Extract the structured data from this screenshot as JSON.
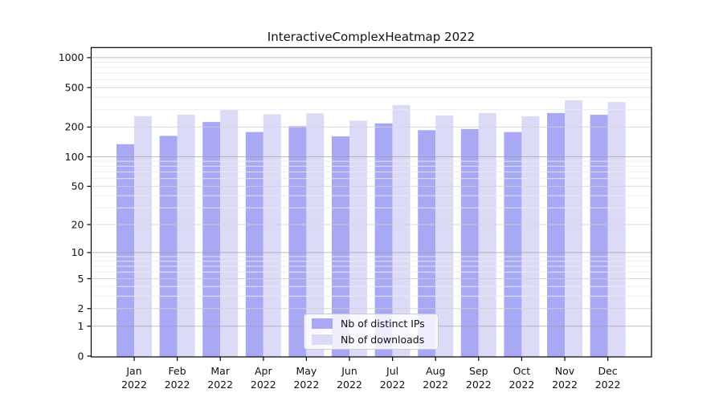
{
  "title": "InteractiveComplexHeatmap 2022",
  "chart_data": {
    "type": "bar",
    "title": "InteractiveComplexHeatmap 2022",
    "months": [
      "Jan",
      "Feb",
      "Mar",
      "Apr",
      "May",
      "Jun",
      "Jul",
      "Aug",
      "Sep",
      "Oct",
      "Nov",
      "Dec"
    ],
    "year": "2022",
    "categories": [
      "Jan 2022",
      "Feb 2022",
      "Mar 2022",
      "Apr 2022",
      "May 2022",
      "Jun 2022",
      "Jul 2022",
      "Aug 2022",
      "Sep 2022",
      "Oct 2022",
      "Nov 2022",
      "Dec 2022"
    ],
    "series": [
      {
        "name": "Nb of distinct IPs",
        "color": "#a8a8f5",
        "values": [
          134,
          163,
          225,
          178,
          204,
          161,
          218,
          186,
          191,
          178,
          277,
          266
        ]
      },
      {
        "name": "Nb of downloads",
        "color": "#dbdbf8",
        "values": [
          258,
          267,
          298,
          269,
          275,
          232,
          334,
          262,
          277,
          257,
          374,
          358
        ]
      }
    ],
    "y_ticks": {
      "values": [
        0,
        1,
        2,
        5,
        10,
        20,
        50,
        100,
        200,
        500,
        1000
      ],
      "labels": [
        "0",
        "1",
        "2",
        "5",
        "10",
        "20",
        "50",
        "100",
        "200",
        "500",
        "1000"
      ]
    },
    "y_scale": "log1p",
    "ylim": [
      0,
      1270
    ],
    "grid": true,
    "legend_position": "lower center"
  },
  "colors": {
    "bar_distinct_ips": "#a8a8f5",
    "bar_downloads": "#dbdbf8",
    "grid_major": "#9b9b9b",
    "grid_mid": "#d2d2d2",
    "grid_minor": "#ebebeb",
    "axis": "#000000",
    "text": "#111111",
    "legend_border": "#cccccc",
    "background": "#ffffff"
  }
}
